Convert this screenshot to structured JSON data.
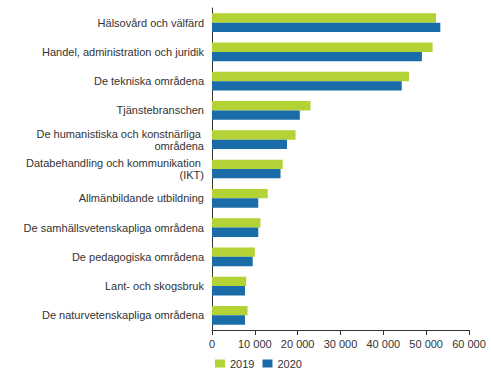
{
  "chart_data": {
    "type": "bar",
    "orientation": "horizontal",
    "grid": false,
    "legend": "bottom",
    "categories": [
      "Hälsovård och välfärd",
      "Handel, administration och juridik",
      "De tekniska områdena",
      "Tjänstebranschen",
      "De humanistiska och konstnärliga områdena",
      "Databehandling och kommunikation (IKT)",
      "Allmänbildande utbildning",
      "De samhällsvetenskapliga områdena",
      "De pedagogiska områdena",
      "Lant- och skogsbruk",
      "De naturvetenskapliga områdena"
    ],
    "series": [
      {
        "name": "2019",
        "color": "#b2d235",
        "values": [
          52300,
          51500,
          46000,
          23000,
          19500,
          16500,
          13000,
          11300,
          10000,
          8000,
          8300
        ]
      },
      {
        "name": "2020",
        "color": "#1a6ca8",
        "values": [
          53300,
          49000,
          44300,
          20500,
          17500,
          16000,
          10800,
          10800,
          9500,
          7700,
          7700
        ]
      }
    ],
    "xlim": [
      0,
      60000
    ],
    "xticks": [
      0,
      {
        "value": 10000,
        "label": "10 000"
      },
      {
        "value": 20000,
        "label": "20 000"
      },
      {
        "value": 30000,
        "label": "30 000"
      },
      {
        "value": 40000,
        "label": "40 000"
      },
      {
        "value": 50000,
        "label": "50 000"
      },
      {
        "value": 60000,
        "label": "60 000"
      }
    ]
  }
}
